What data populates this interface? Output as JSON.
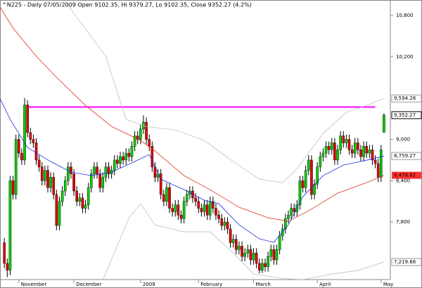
{
  "chart_data": {
    "type": "candlestick",
    "title": "^N225 - Daily 07/05/2009 Open 9102.35, Hi 9379.27, Lo 9102.35, Close 9352.27 (4.2%)",
    "open": [
      7500,
      7200,
      7100,
      8400,
      8200,
      9000,
      8800,
      8700,
      9500,
      9100,
      9000,
      8950,
      8700,
      8600,
      8400,
      8550,
      8300,
      8450,
      8200,
      7750,
      8100,
      8250,
      8400,
      8600,
      8500,
      8250,
      8100,
      8150,
      8000,
      8050,
      8300,
      8500,
      8600,
      8500,
      8300,
      8450,
      8600,
      8500,
      8550,
      8700,
      8650,
      8750,
      8700,
      8800,
      8750,
      8900,
      9050,
      9000,
      9150,
      9250,
      9000,
      8900,
      8600,
      8450,
      8500,
      8200,
      8100,
      8300,
      8000,
      7950,
      8050,
      7900,
      7850,
      8100,
      8200,
      8250,
      8150,
      8100,
      8000,
      7950,
      8050,
      7900,
      8100,
      8000,
      7900,
      7850,
      7750,
      7800,
      7700,
      7500,
      7550,
      7400,
      7450,
      7300,
      7350,
      7400,
      7250,
      7350,
      7200,
      7100,
      7200,
      7150,
      7300,
      7400,
      7250,
      7400,
      7600,
      7700,
      7850,
      7900,
      8000,
      7950,
      8050,
      8400,
      8300,
      8550,
      8700,
      8200,
      8350,
      8600,
      8750,
      8800,
      8900,
      8850,
      8950,
      8700,
      8850,
      9050,
      8950,
      9000,
      8850,
      8800,
      8950,
      8850,
      8750,
      8900,
      8800,
      8850,
      8700,
      8650,
      8450,
      9102.35
    ],
    "high": [
      7570,
      7270,
      8470,
      8470,
      9070,
      9070,
      8870,
      9600,
      9570,
      9170,
      9070,
      9020,
      8770,
      8670,
      8620,
      8620,
      8520,
      8520,
      8270,
      8170,
      8320,
      8470,
      8670,
      8670,
      8570,
      8320,
      8220,
      8220,
      8120,
      8370,
      8570,
      8670,
      8670,
      8570,
      8520,
      8670,
      8670,
      8620,
      8770,
      8770,
      8820,
      8820,
      8870,
      8870,
      8970,
      9120,
      9120,
      9220,
      9350,
      9320,
      9070,
      8970,
      8670,
      8570,
      8570,
      8270,
      8370,
      8370,
      8070,
      8120,
      8120,
      7970,
      8170,
      8270,
      8320,
      8320,
      8220,
      8170,
      8070,
      8120,
      8120,
      8170,
      8170,
      8070,
      7970,
      7920,
      7870,
      7870,
      7770,
      7620,
      7620,
      7520,
      7520,
      7420,
      7470,
      7470,
      7420,
      7420,
      7270,
      7270,
      7270,
      7370,
      7470,
      7470,
      7470,
      7670,
      7770,
      7920,
      7970,
      8070,
      8070,
      8120,
      8470,
      8470,
      8620,
      8770,
      8770,
      8420,
      8670,
      8820,
      8870,
      8970,
      8970,
      9020,
      9020,
      8920,
      9120,
      9120,
      9070,
      9070,
      8920,
      9020,
      9020,
      8920,
      8970,
      8970,
      8920,
      8920,
      8770,
      8720,
      8920,
      9379.27
    ],
    "low": [
      7130,
      7000,
      7030,
      8130,
      8130,
      8730,
      8630,
      8630,
      9030,
      8930,
      8880,
      8630,
      8530,
      8330,
      8330,
      8230,
      8230,
      8130,
      7680,
      7680,
      8030,
      8180,
      8330,
      8430,
      8180,
      8030,
      8030,
      7930,
      7930,
      7980,
      8230,
      8430,
      8430,
      8230,
      8230,
      8380,
      8430,
      8430,
      8480,
      8580,
      8580,
      8630,
      8630,
      8680,
      8680,
      8830,
      8930,
      8930,
      9080,
      8930,
      8830,
      8530,
      8380,
      8380,
      8130,
      8030,
      8030,
      7930,
      7880,
      7880,
      7830,
      7780,
      7780,
      8030,
      8130,
      8080,
      8030,
      7930,
      7880,
      7880,
      7830,
      7830,
      7930,
      7830,
      7780,
      7680,
      7680,
      7630,
      7430,
      7430,
      7330,
      7330,
      7230,
      7230,
      7280,
      7180,
      7180,
      7130,
      7054,
      7060,
      7080,
      7080,
      7230,
      7180,
      7180,
      7330,
      7530,
      7630,
      7780,
      7830,
      7880,
      7880,
      7980,
      8230,
      8230,
      8480,
      8130,
      8130,
      8280,
      8530,
      8680,
      8730,
      8780,
      8780,
      8630,
      8630,
      8780,
      8880,
      8880,
      8780,
      8730,
      8730,
      8780,
      8680,
      8680,
      8730,
      8730,
      8630,
      8580,
      8380,
      8380,
      9102.35
    ],
    "close": [
      7200,
      7100,
      8400,
      8200,
      9000,
      8800,
      8700,
      9500,
      9100,
      9000,
      8950,
      8700,
      8600,
      8400,
      8550,
      8300,
      8450,
      8200,
      7750,
      8100,
      8250,
      8400,
      8600,
      8500,
      8250,
      8100,
      8150,
      8000,
      8050,
      8300,
      8500,
      8600,
      8500,
      8300,
      8450,
      8600,
      8500,
      8550,
      8700,
      8650,
      8750,
      8700,
      8800,
      8750,
      8900,
      9050,
      9000,
      9150,
      9250,
      9000,
      8900,
      8600,
      8450,
      8500,
      8200,
      8100,
      8300,
      8000,
      7950,
      8050,
      7900,
      7850,
      8100,
      8200,
      8250,
      8150,
      8100,
      8000,
      7950,
      8050,
      7900,
      8100,
      8000,
      7900,
      7850,
      7750,
      7800,
      7700,
      7500,
      7550,
      7400,
      7450,
      7300,
      7350,
      7400,
      7250,
      7350,
      7200,
      7100,
      7200,
      7150,
      7300,
      7400,
      7250,
      7400,
      7600,
      7700,
      7850,
      7900,
      8000,
      7950,
      8050,
      8400,
      8300,
      8550,
      8700,
      8200,
      8350,
      8600,
      8750,
      8800,
      8900,
      8850,
      8950,
      8700,
      8850,
      9050,
      8950,
      9000,
      8850,
      8800,
      8950,
      8850,
      8750,
      8900,
      8800,
      8850,
      8700,
      8650,
      8450,
      8850,
      9352.27
    ],
    "close_label": "9,352.27",
    "up_color": "#00cc00",
    "down_color": "#dd0000",
    "xlim": [
      -1.5,
      133.2
    ],
    "ylim": [
      6965,
      11024
    ],
    "yticks": [
      {
        "value": 10800,
        "label": "10,800"
      },
      {
        "value": 10200,
        "label": "10,200"
      },
      {
        "value": 9000,
        "label": "9,000"
      },
      {
        "value": 8400,
        "label": "8,400"
      },
      {
        "value": 7800,
        "label": "7,800"
      }
    ],
    "xticks": [
      {
        "value": 5,
        "label": "November"
      },
      {
        "value": 24,
        "label": "December"
      },
      {
        "value": 47,
        "label": "2009"
      },
      {
        "value": 67,
        "label": "February"
      },
      {
        "value": 86,
        "label": "March"
      },
      {
        "value": 108,
        "label": "April"
      },
      {
        "value": 130,
        "label": "May"
      }
    ],
    "overlays": [
      {
        "color": "#c0c0c0",
        "x": [
          21,
          35,
          42,
          49,
          59,
          69,
          79,
          88,
          96,
          101,
          110,
          118,
          125,
          131
        ],
        "values": [
          11000,
          10208,
          9290,
          9188,
          9137,
          8984,
          8678,
          8423,
          8372,
          8576,
          9086,
          9392,
          9494,
          9594.28
        ],
        "last_label": "9,594.28"
      },
      {
        "color": "#c0c0c0",
        "x": [
          34,
          40,
          43,
          47,
          52,
          62,
          71,
          79,
          86,
          96,
          103,
          113,
          122,
          131
        ],
        "values": [
          6965,
          7556,
          7862,
          8066,
          7760,
          7658,
          7658,
          7352,
          7046,
          6980,
          6965,
          7046,
          7097,
          7219.66
        ],
        "last_label": "7,219.66"
      },
      {
        "color": "#e03020",
        "x": [
          -1.5,
          3,
          11,
          18,
          28,
          37,
          47,
          52,
          62,
          71,
          81,
          91,
          98,
          105,
          115,
          125,
          131
        ],
        "values": [
          10922,
          10616,
          10208,
          9902,
          9494,
          9188,
          8984,
          8831,
          8474,
          8270,
          8015,
          7862,
          7811,
          7964,
          8219,
          8372,
          8478.82
        ],
        "last_label": "8,478.82",
        "label_fill": "#ff3030"
      },
      {
        "color": "#2030e0",
        "x": [
          -1.5,
          2,
          8,
          16,
          23,
          30,
          37,
          45,
          50,
          54,
          62,
          69,
          74,
          81,
          88,
          93,
          98,
          103,
          110,
          117,
          125,
          131
        ],
        "values": [
          9596,
          9290,
          8882,
          8678,
          8525,
          8474,
          8525,
          8678,
          8780,
          8423,
          8270,
          8117,
          8066,
          7760,
          7556,
          7505,
          7760,
          8168,
          8474,
          8627,
          8698,
          8759.27
        ],
        "last_label": "8,759.27"
      }
    ],
    "hline": {
      "value": 9470,
      "color": "#ff00ff",
      "x": [
        8,
        128
      ]
    }
  }
}
